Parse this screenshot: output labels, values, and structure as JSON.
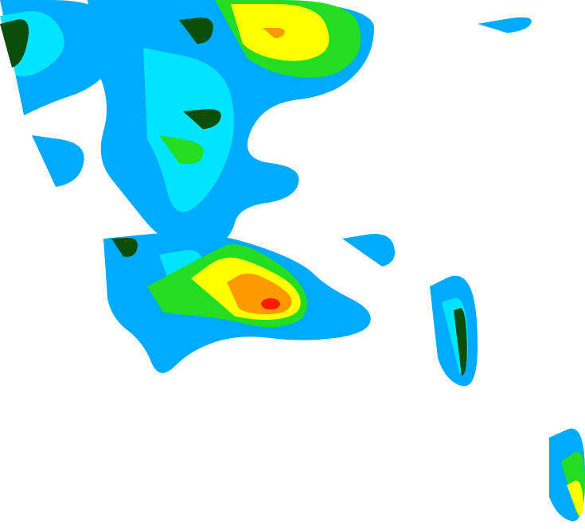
{
  "map": {
    "type": "weather-radar-reflectivity",
    "background": "#ffffff",
    "intensity_colors": {
      "light_blue": "#00aaff",
      "cyan": "#00e5ff",
      "dark_green": "#0b4d0b",
      "green": "#22dd22",
      "yellow": "#ffff00",
      "orange": "#ff9900",
      "red": "#ff1a00"
    }
  }
}
